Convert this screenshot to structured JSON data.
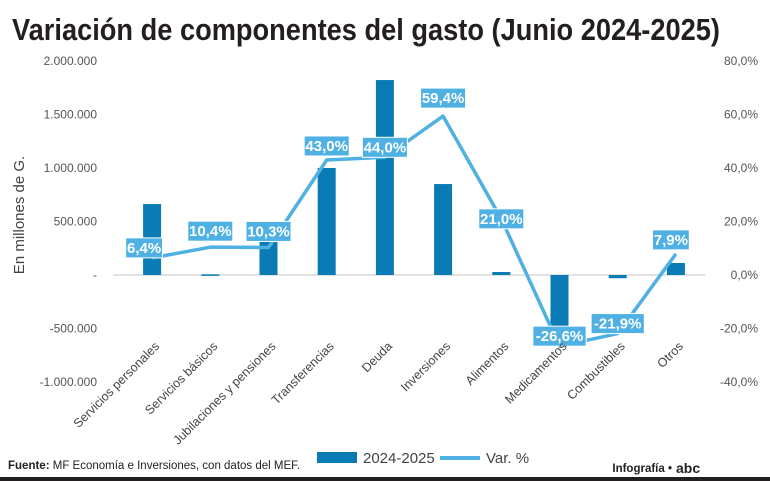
{
  "chart_data": {
    "type": "bar+line",
    "title": "Variación de componentes del gasto (Junio 2024-2025)",
    "ylabel": "En millones de G.",
    "categories": [
      "Servicios personales",
      "Servicios básicos",
      "Jubilaciones y pensiones",
      "Transferencias",
      "Deuda",
      "Inversiones",
      "Alimentos",
      "Medicamentos",
      "Combustibles",
      "Otros"
    ],
    "series": [
      {
        "name": "2024-2025",
        "type": "bar",
        "axis": "left",
        "color": "#0a7bb5",
        "values": [
          663000,
          6000,
          330000,
          1000000,
          1822000,
          850000,
          28000,
          -590000,
          -30000,
          112000
        ]
      },
      {
        "name": "Var. %",
        "type": "line",
        "axis": "right",
        "color": "#4eb0e3",
        "values": [
          6.4,
          10.4,
          10.3,
          43.0,
          44.0,
          59.4,
          21.0,
          -26.6,
          -21.9,
          7.9
        ],
        "labels": [
          "6,4%",
          "10,4%",
          "10,3%",
          "43,0%",
          "44,0%",
          "59,4%",
          "21,0%",
          "-26,6%",
          "-21,9%",
          "7,9%"
        ]
      }
    ],
    "ylim_left": [
      -1000000,
      2000000
    ],
    "ylim_right": [
      -40,
      80
    ],
    "left_ticks": [
      2000000,
      1500000,
      1000000,
      500000,
      0,
      -500000,
      -1000000
    ],
    "left_tick_labels": [
      "2.000.000",
      "1.500.000",
      "1.000.000",
      "500.000",
      "-",
      "-500.000",
      "-1.000.000"
    ],
    "right_ticks": [
      80,
      60,
      40,
      20,
      0,
      -20,
      -40
    ],
    "right_tick_labels": [
      "80,0%",
      "60,0%",
      "40,0%",
      "20,0%",
      "0,0%",
      "-20,0%",
      "-40,0%"
    ],
    "legend": [
      "2024-2025",
      "Var. %"
    ],
    "legend_position": "bottom"
  },
  "footer": {
    "source_label": "Fuente:",
    "source_text": "MF Economía e Inversiones, con datos del MEF.",
    "credit": "Infografía •",
    "logo": "abc"
  }
}
